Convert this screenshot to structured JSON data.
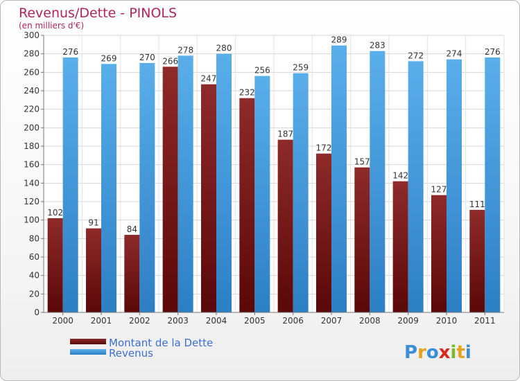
{
  "chart_data": {
    "type": "bar",
    "title": "Revenus/Dette - PINOLS",
    "subtitle": "(en milliers d'€)",
    "categories": [
      "2000",
      "2001",
      "2002",
      "2003",
      "2004",
      "2005",
      "2006",
      "2007",
      "2008",
      "2009",
      "2010",
      "2011"
    ],
    "series": [
      {
        "name": "Montant de la Dette",
        "color": "#7a1a1a",
        "values": [
          102,
          91,
          84,
          266,
          247,
          232,
          187,
          172,
          157,
          142,
          127,
          111
        ]
      },
      {
        "name": "Revenus",
        "color": "#4a9de0",
        "values": [
          276,
          269,
          270,
          278,
          280,
          256,
          259,
          289,
          283,
          272,
          274,
          276
        ]
      }
    ],
    "ylim": [
      0,
      300
    ],
    "yticks": [
      0,
      20,
      40,
      60,
      80,
      100,
      120,
      140,
      160,
      180,
      200,
      220,
      240,
      260,
      280,
      300
    ],
    "grid": true,
    "legend_position": "bottom-left"
  },
  "logo": {
    "text": "Proxiti"
  }
}
